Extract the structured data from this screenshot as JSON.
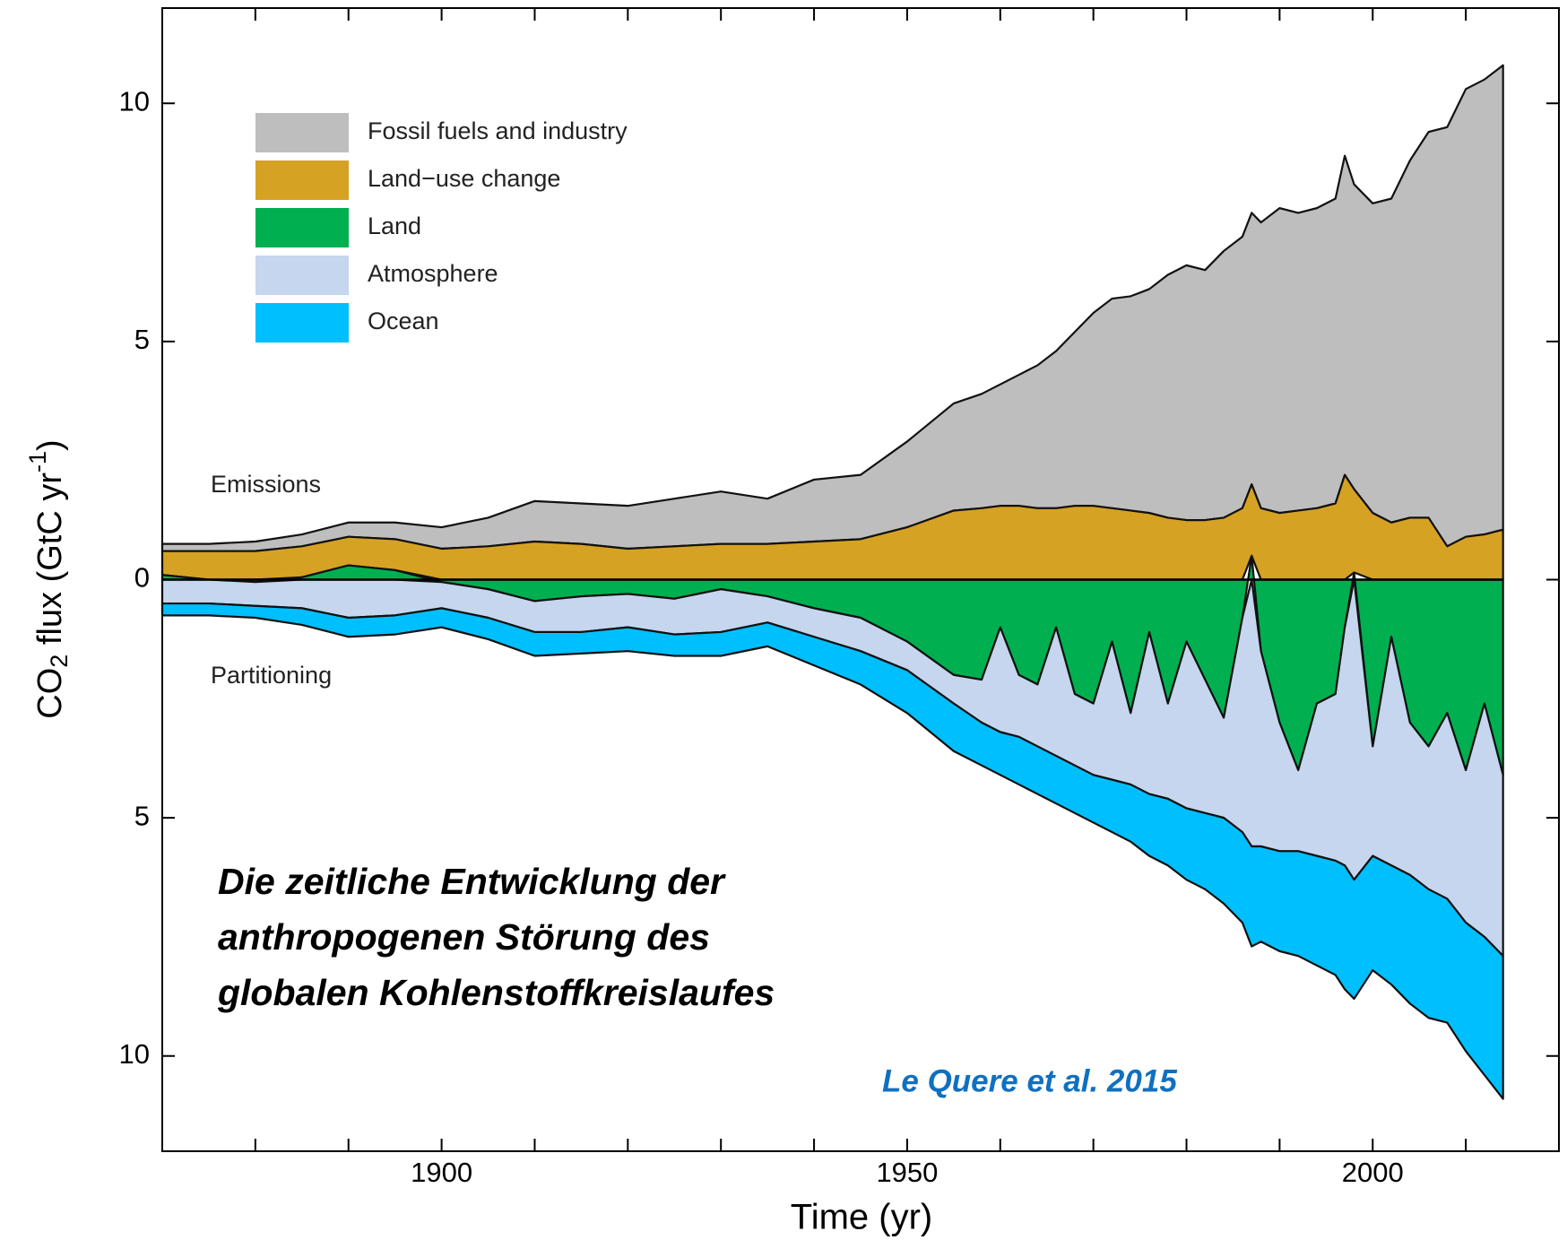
{
  "chart_data": {
    "type": "stacked_area",
    "x_label": "Time (yr)",
    "y_label": {
      "base": "CO",
      "sub": "2",
      "mid": " flux (GtC yr",
      "sup": "-1",
      "end": ")"
    },
    "annotations": [
      "Emissions",
      "Partitioning"
    ],
    "caption": [
      "Die zeitliche Entwicklung der",
      "anthropogenen Störung des",
      "globalen Kohlenstoffkreislaufes"
    ],
    "source": "Le Quere et al. 2015",
    "x": [
      1870,
      1875,
      1880,
      1885,
      1890,
      1895,
      1900,
      1905,
      1910,
      1915,
      1920,
      1925,
      1930,
      1935,
      1940,
      1945,
      1950,
      1955,
      1958,
      1960,
      1962,
      1964,
      1966,
      1968,
      1970,
      1972,
      1974,
      1976,
      1978,
      1980,
      1982,
      1984,
      1986,
      1987,
      1988,
      1990,
      1992,
      1994,
      1996,
      1997,
      1998,
      2000,
      2002,
      2004,
      2006,
      2008,
      2010,
      2012,
      2014
    ],
    "series": [
      {
        "name": "Fossil fuels and industry",
        "color": "#bebebe",
        "values": [
          0.15,
          0.15,
          0.2,
          0.25,
          0.3,
          0.35,
          0.45,
          0.6,
          0.85,
          0.85,
          0.9,
          1.0,
          1.1,
          0.95,
          1.3,
          1.35,
          1.8,
          2.25,
          2.4,
          2.55,
          2.75,
          3.0,
          3.3,
          3.65,
          4.05,
          4.4,
          4.5,
          4.7,
          5.1,
          5.35,
          5.25,
          5.6,
          5.7,
          5.7,
          6.0,
          6.4,
          6.25,
          6.3,
          6.4,
          6.7,
          6.4,
          6.5,
          6.8,
          7.5,
          8.1,
          8.8,
          9.4,
          9.55,
          9.75
        ]
      },
      {
        "name": "Land−use change",
        "color": "#d6a224",
        "values": [
          0.5,
          0.6,
          0.6,
          0.65,
          0.6,
          0.65,
          0.65,
          0.7,
          0.8,
          0.75,
          0.65,
          0.7,
          0.75,
          0.75,
          0.8,
          0.85,
          1.1,
          1.45,
          1.5,
          1.55,
          1.55,
          1.5,
          1.5,
          1.55,
          1.55,
          1.5,
          1.45,
          1.4,
          1.3,
          1.25,
          1.25,
          1.3,
          1.5,
          1.5,
          1.5,
          1.4,
          1.45,
          1.5,
          1.6,
          2.2,
          1.75,
          1.4,
          1.2,
          1.3,
          1.3,
          0.7,
          0.9,
          0.95,
          1.05
        ]
      },
      {
        "name": "Land",
        "color": "#00b050",
        "values": [
          0.1,
          0.0,
          -0.05,
          0.05,
          0.3,
          0.2,
          -0.05,
          -0.2,
          -0.45,
          -0.35,
          -0.3,
          -0.4,
          -0.2,
          -0.35,
          -0.6,
          -0.8,
          -1.3,
          -2.0,
          -2.1,
          -1.0,
          -2.0,
          -2.2,
          -1.0,
          -2.4,
          -2.6,
          -1.3,
          -2.8,
          -1.1,
          -2.6,
          -1.3,
          -2.1,
          -2.9,
          -0.8,
          0.5,
          -1.5,
          -3.0,
          -4.0,
          -2.6,
          -2.4,
          -1.0,
          0.15,
          -3.5,
          -1.2,
          -3.0,
          -3.5,
          -2.8,
          -4.0,
          -2.6,
          -4.1
        ]
      },
      {
        "name": "Atmosphere",
        "color": "#c5d6ee",
        "values": [
          -0.5,
          -0.5,
          -0.5,
          -0.6,
          -0.8,
          -0.75,
          -0.55,
          -0.6,
          -0.65,
          -0.75,
          -0.7,
          -0.75,
          -0.9,
          -0.55,
          -0.6,
          -0.7,
          -0.6,
          -0.6,
          -0.9,
          -2.2,
          -1.3,
          -1.3,
          -2.7,
          -1.5,
          -1.5,
          -2.9,
          -1.5,
          -3.4,
          -2.0,
          -3.5,
          -2.8,
          -2.1,
          -4.5,
          -5.6,
          -4.1,
          -2.7,
          -1.7,
          -3.2,
          -3.5,
          -5.0,
          -6.3,
          -2.3,
          -4.8,
          -3.2,
          -3.0,
          -3.9,
          -3.2,
          -4.9,
          -3.8
        ]
      },
      {
        "name": "Ocean",
        "color": "#00bfff",
        "values": [
          -0.25,
          -0.25,
          -0.25,
          -0.35,
          -0.4,
          -0.4,
          -0.4,
          -0.45,
          -0.5,
          -0.45,
          -0.5,
          -0.45,
          -0.5,
          -0.5,
          -0.6,
          -0.7,
          -0.9,
          -1.0,
          -0.9,
          -0.9,
          -1.0,
          -1.0,
          -1.0,
          -1.0,
          -1.0,
          -1.1,
          -1.2,
          -1.3,
          -1.4,
          -1.5,
          -1.6,
          -1.8,
          -1.9,
          -2.1,
          -2.0,
          -2.1,
          -2.2,
          -2.3,
          -2.4,
          -2.6,
          -2.5,
          -2.4,
          -2.5,
          -2.7,
          -2.7,
          -2.6,
          -2.7,
          -2.9,
          -3.0
        ]
      }
    ],
    "xlim": [
      1870,
      2020
    ],
    "ylim": [
      -12,
      12
    ],
    "xticks": [
      1900,
      1950,
      2000
    ],
    "xticks_minor": [
      1880,
      1890,
      1910,
      1920,
      1930,
      1940,
      1960,
      1970,
      1980,
      1990,
      2010
    ],
    "yticks": [
      {
        "value": -10,
        "label": "10"
      },
      {
        "value": -5,
        "label": "5"
      },
      0,
      5,
      10
    ],
    "legend": "upper left"
  }
}
